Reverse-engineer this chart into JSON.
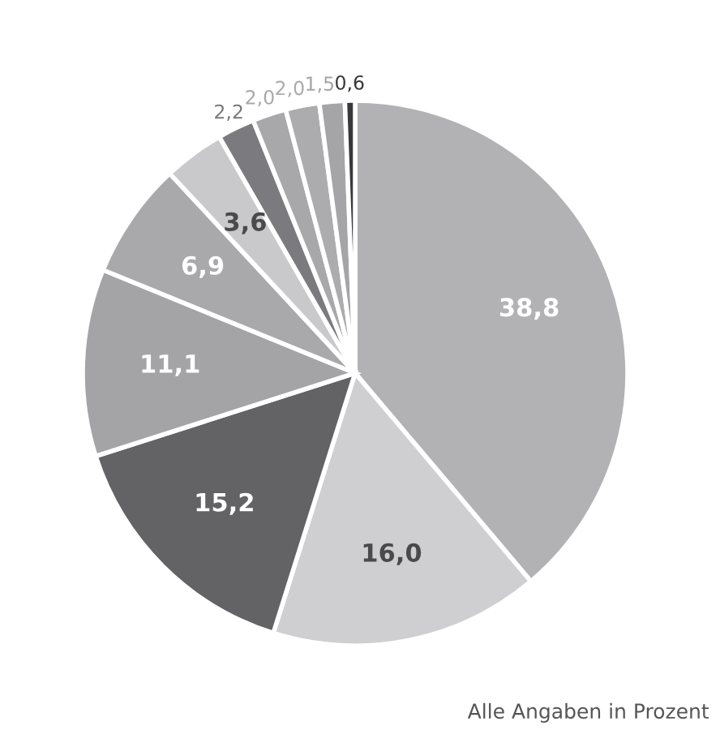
{
  "chart_data": {
    "type": "pie",
    "categories": [
      null,
      null,
      null,
      null,
      null,
      null,
      null,
      null,
      null,
      null,
      null
    ],
    "values": [
      38.8,
      16.0,
      15.2,
      11.1,
      6.9,
      3.6,
      2.2,
      2.0,
      2.0,
      1.5,
      0.6
    ],
    "value_labels": [
      "38,8",
      "16,0",
      "15,2",
      "11,1",
      "6,9",
      "3,6",
      "2,2",
      "2,0",
      "2,0",
      "1,5",
      "0,6"
    ],
    "colors": [
      "#b2b2b4",
      "#cfcfd1",
      "#636365",
      "#a4a4a6",
      "#a9a9ab",
      "#c9c9cb",
      "#7b7b7f",
      "#a8a8aa",
      "#acacae",
      "#a5a5a7",
      "#38383a"
    ],
    "annotations": [
      "Alle Angaben in Prozent"
    ]
  }
}
